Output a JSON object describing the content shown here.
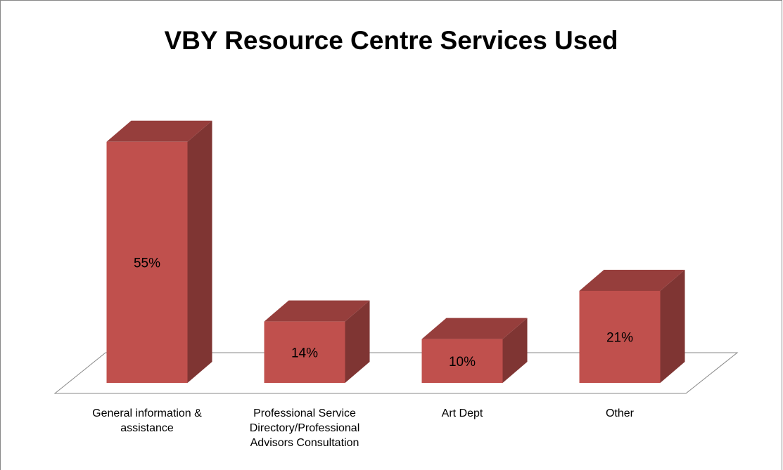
{
  "chart_data": {
    "type": "bar3d",
    "title": "VBY Resource Centre Services Used",
    "categories": [
      "General information & assistance",
      "Professional Service Directory/Professional Advisors Consultation",
      "Art Dept",
      "Other"
    ],
    "values": [
      55,
      14,
      10,
      21
    ],
    "value_labels": [
      "55%",
      "14%",
      "10%",
      "21%"
    ],
    "color": "#c0504d"
  }
}
